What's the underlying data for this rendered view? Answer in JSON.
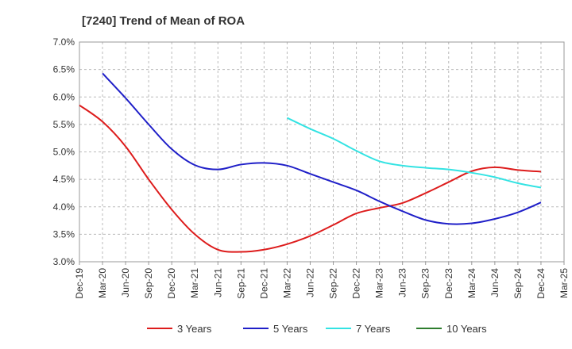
{
  "chart_data": {
    "type": "line",
    "title": "[7240]  Trend of Mean of ROA",
    "xlabel": "",
    "ylabel": "",
    "ylim": [
      3.0,
      7.0
    ],
    "yticks": [
      "7.0%",
      "6.5%",
      "6.0%",
      "5.5%",
      "5.0%",
      "4.5%",
      "4.0%",
      "3.5%",
      "3.0%"
    ],
    "categories": [
      "Dec-19",
      "Mar-20",
      "Jun-20",
      "Sep-20",
      "Dec-20",
      "Mar-21",
      "Jun-21",
      "Sep-21",
      "Dec-21",
      "Mar-22",
      "Jun-22",
      "Sep-22",
      "Dec-22",
      "Mar-23",
      "Jun-23",
      "Sep-23",
      "Dec-23",
      "Mar-24",
      "Jun-24",
      "Sep-24",
      "Dec-24",
      "Mar-25"
    ],
    "grid": true,
    "legend_position": "bottom",
    "series": [
      {
        "name": "3 Years",
        "color": "#dd1c1c",
        "values": [
          5.85,
          5.55,
          5.1,
          4.5,
          3.95,
          3.5,
          3.22,
          3.18,
          3.22,
          3.32,
          3.47,
          3.67,
          3.88,
          3.98,
          4.07,
          4.25,
          4.45,
          4.65,
          4.72,
          4.67,
          4.64,
          null
        ]
      },
      {
        "name": "5 Years",
        "color": "#1f1fc8",
        "values": [
          null,
          6.43,
          5.98,
          5.5,
          5.05,
          4.76,
          4.68,
          4.77,
          4.8,
          4.75,
          4.6,
          4.45,
          4.3,
          4.1,
          3.92,
          3.76,
          3.69,
          3.7,
          3.78,
          3.9,
          4.08,
          null
        ]
      },
      {
        "name": "7 Years",
        "color": "#33e3e3",
        "values": [
          null,
          null,
          null,
          null,
          null,
          null,
          null,
          null,
          null,
          5.62,
          5.42,
          5.24,
          5.02,
          4.83,
          4.75,
          4.71,
          4.68,
          4.62,
          4.54,
          4.43,
          4.35,
          null
        ]
      },
      {
        "name": "10 Years",
        "color": "#2e7d2e",
        "values": [
          null,
          null,
          null,
          null,
          null,
          null,
          null,
          null,
          null,
          null,
          null,
          null,
          null,
          null,
          null,
          null,
          null,
          null,
          null,
          null,
          null,
          null
        ]
      }
    ]
  }
}
